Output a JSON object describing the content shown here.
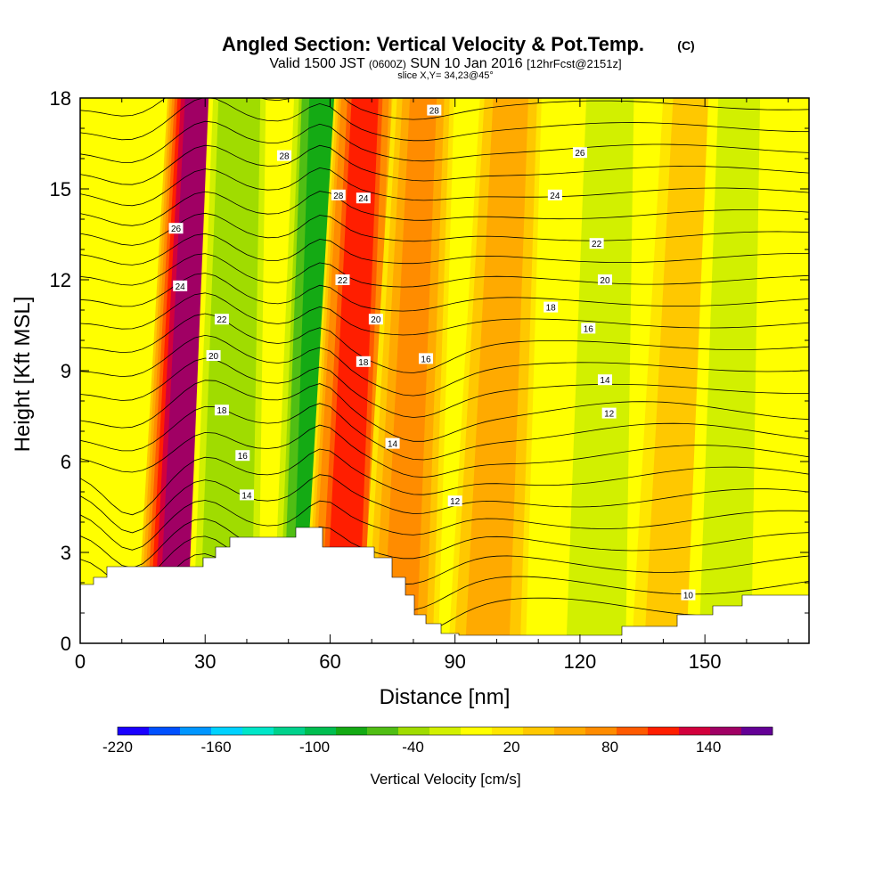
{
  "chart_data": {
    "type": "heatmap",
    "title": "Angled Section: Vertical Velocity & Pot.Temp.",
    "title_unit": "(C)",
    "subtitle_parts": [
      "Valid 1500 JST ",
      "(0600Z)",
      " SUN 10 Jan 2016 ",
      "[12hrFcst@2151z]"
    ],
    "slice_label": "slice X,Y= 34,23@45°",
    "xlabel": "Distance [nm]",
    "ylabel": "Height [Kft MSL]",
    "xlim": [
      0,
      175
    ],
    "ylim": [
      0,
      18
    ],
    "x_ticks": [
      0,
      30,
      60,
      90,
      120,
      150
    ],
    "y_ticks": [
      0,
      3,
      6,
      9,
      12,
      15,
      18
    ],
    "colorbar": {
      "label": "Vertical Velocity [cm/s]",
      "tick_labels": [
        -220,
        -160,
        -100,
        -40,
        20,
        80,
        140
      ],
      "levels": [
        -220,
        -200,
        -180,
        -160,
        -140,
        -120,
        -100,
        -80,
        -60,
        -40,
        -20,
        0,
        20,
        40,
        60,
        80,
        100,
        120,
        140,
        160
      ],
      "colors": [
        "#1a00ff",
        "#0050ff",
        "#0096ff",
        "#00d2ff",
        "#00e6c8",
        "#00d28c",
        "#00be50",
        "#14aa14",
        "#50be14",
        "#a0dc00",
        "#d2f000",
        "#ffff00",
        "#ffe600",
        "#ffc800",
        "#ffaa00",
        "#ff8c00",
        "#ff5a00",
        "#ff1e00",
        "#d2003c",
        "#a00064",
        "#640096"
      ]
    },
    "velocity_bands": [
      {
        "x_center": 23,
        "value": 150
      },
      {
        "x_center": 35,
        "value": -60
      },
      {
        "x_center": 55,
        "value": -90
      },
      {
        "x_center": 63,
        "value": 110
      },
      {
        "x_center": 77,
        "value": 60
      },
      {
        "x_center": 98,
        "value": 50
      },
      {
        "x_center": 124,
        "value": -40
      },
      {
        "x_center": 142,
        "value": 30
      },
      {
        "x_center": 155,
        "value": -30
      }
    ],
    "theta_contour_labels": [
      {
        "x": 23,
        "y": 13.7,
        "value": "26"
      },
      {
        "x": 24,
        "y": 11.8,
        "value": "24"
      },
      {
        "x": 34,
        "y": 10.7,
        "value": "22"
      },
      {
        "x": 32,
        "y": 9.5,
        "value": "20"
      },
      {
        "x": 34,
        "y": 7.7,
        "value": "18"
      },
      {
        "x": 39,
        "y": 6.2,
        "value": "16"
      },
      {
        "x": 40,
        "y": 4.9,
        "value": "14"
      },
      {
        "x": 49,
        "y": 16.1,
        "value": "28"
      },
      {
        "x": 62,
        "y": 14.8,
        "value": "28"
      },
      {
        "x": 68,
        "y": 14.7,
        "value": "24"
      },
      {
        "x": 63,
        "y": 12.0,
        "value": "22"
      },
      {
        "x": 71,
        "y": 10.7,
        "value": "20"
      },
      {
        "x": 68,
        "y": 9.3,
        "value": "18"
      },
      {
        "x": 83,
        "y": 9.4,
        "value": "16"
      },
      {
        "x": 75,
        "y": 6.6,
        "value": "14"
      },
      {
        "x": 90,
        "y": 4.7,
        "value": "12"
      },
      {
        "x": 85,
        "y": 17.6,
        "value": "28"
      },
      {
        "x": 120,
        "y": 16.2,
        "value": "26"
      },
      {
        "x": 114,
        "y": 14.8,
        "value": "24"
      },
      {
        "x": 124,
        "y": 13.2,
        "value": "22"
      },
      {
        "x": 126,
        "y": 12.0,
        "value": "20"
      },
      {
        "x": 113,
        "y": 11.1,
        "value": "18"
      },
      {
        "x": 122,
        "y": 10.4,
        "value": "16"
      },
      {
        "x": 126,
        "y": 8.7,
        "value": "14"
      },
      {
        "x": 127,
        "y": 7.6,
        "value": "12"
      },
      {
        "x": 146,
        "y": 1.6,
        "value": "10"
      }
    ]
  }
}
